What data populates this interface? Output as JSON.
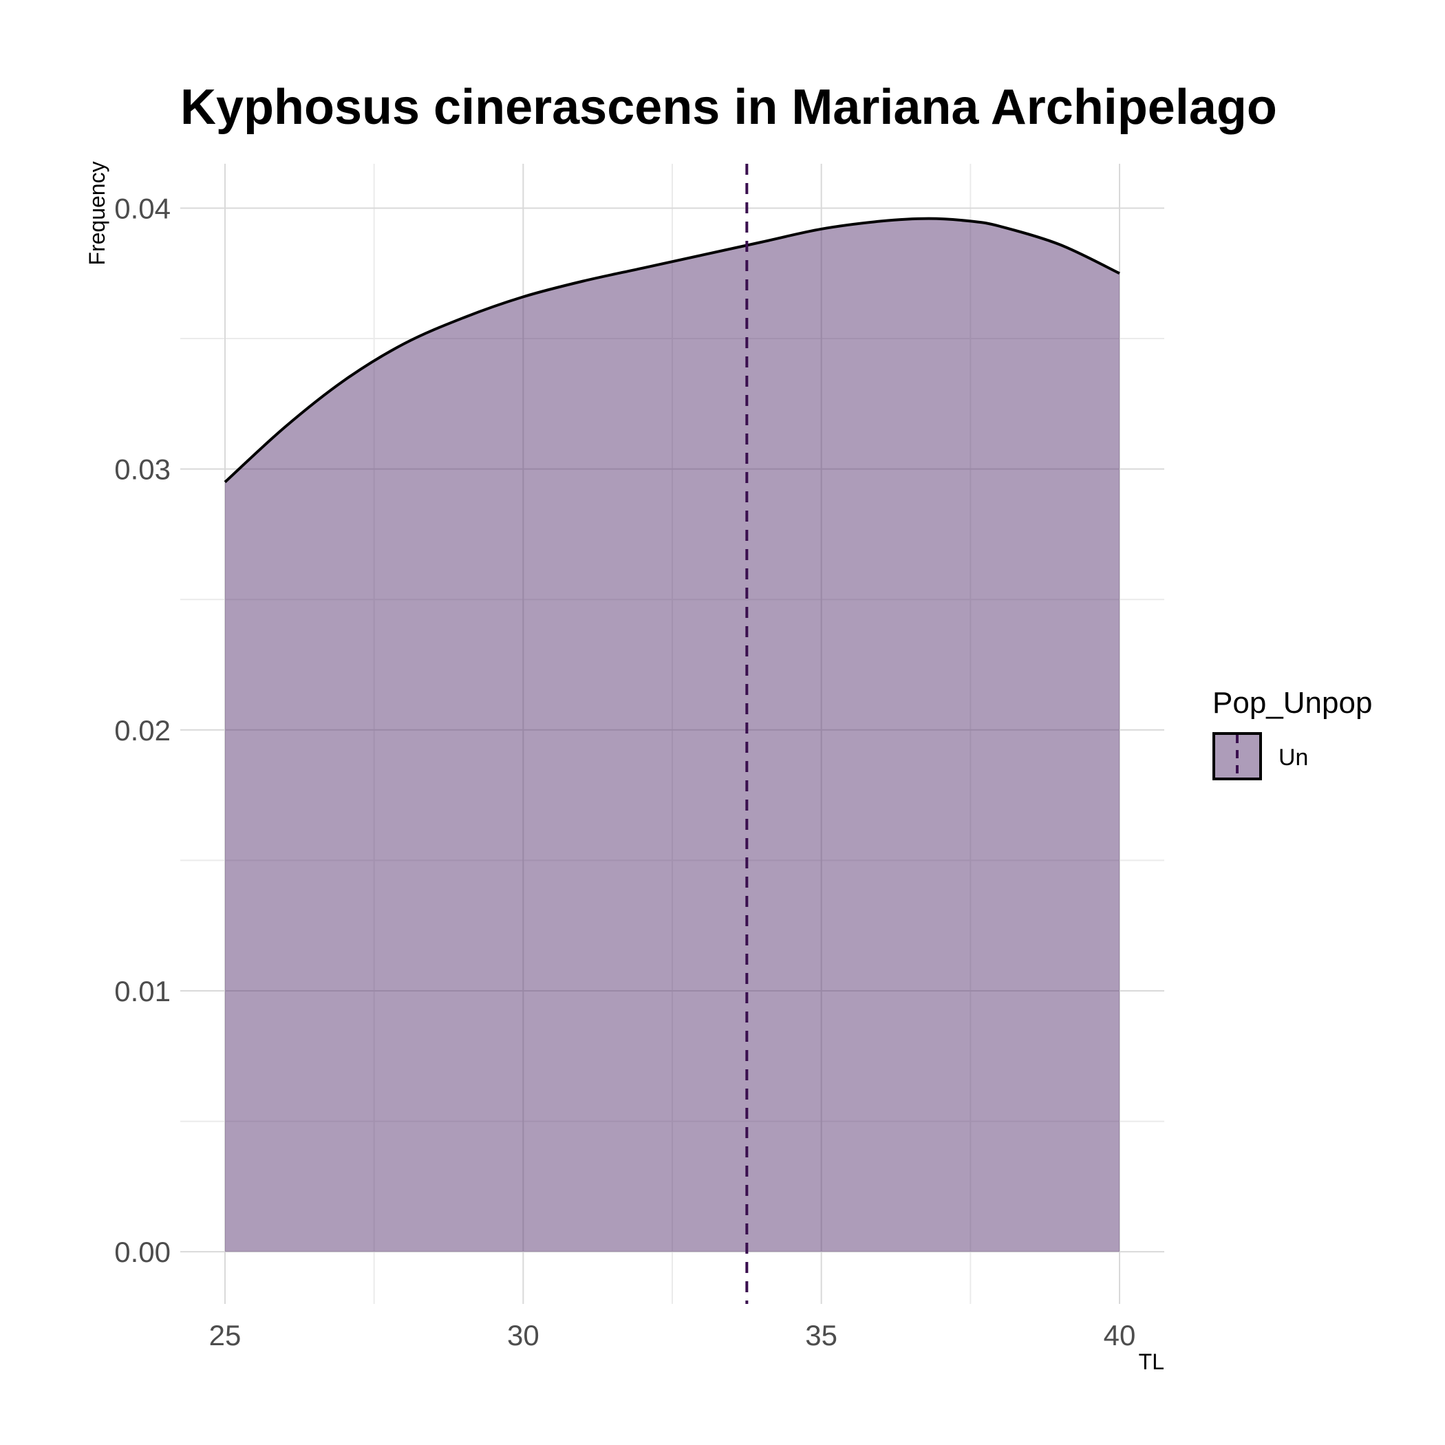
{
  "chart_data": {
    "type": "area",
    "title": "Kyphosus cinerascens in Mariana Archipelago",
    "xlabel": "TL",
    "ylabel": "Frequency",
    "xlim": [
      24.25,
      40.75
    ],
    "ylim": [
      -0.002,
      0.0417
    ],
    "x_ticks": [
      25,
      30,
      35,
      40
    ],
    "x_tick_labels": [
      "25",
      "30",
      "35",
      "40"
    ],
    "x_minor_ticks": [
      27.5,
      32.5,
      37.5
    ],
    "y_ticks": [
      0,
      0.01,
      0.02,
      0.03,
      0.04
    ],
    "y_tick_labels": [
      "0.00",
      "0.01",
      "0.02",
      "0.03",
      "0.04"
    ],
    "y_minor_ticks": [
      0.005,
      0.015,
      0.025,
      0.035
    ],
    "grid": true,
    "series": [
      {
        "name": "Un",
        "fill_color": "#5b3a74",
        "fill_opacity": 0.5,
        "line_color": "#000000",
        "x": [
          25,
          26,
          27,
          28,
          29,
          30,
          31,
          32,
          33,
          34,
          35,
          36,
          36.8,
          37.5,
          38,
          39,
          40
        ],
        "y": [
          0.0295,
          0.0316,
          0.0334,
          0.0348,
          0.0358,
          0.0366,
          0.0372,
          0.0377,
          0.0382,
          0.0387,
          0.0392,
          0.0395,
          0.0396,
          0.0395,
          0.0393,
          0.0386,
          0.0375
        ]
      }
    ],
    "vlines": [
      {
        "x": 33.75,
        "color": "#3a0f4f",
        "style": "dashed"
      }
    ],
    "legend": {
      "title": "Pop_Unpop",
      "placement": "right",
      "entries": [
        {
          "label": "Un",
          "fill_color": "#5b3a74",
          "fill_opacity": 0.5,
          "line_color": "#3a0f4f"
        }
      ]
    }
  }
}
